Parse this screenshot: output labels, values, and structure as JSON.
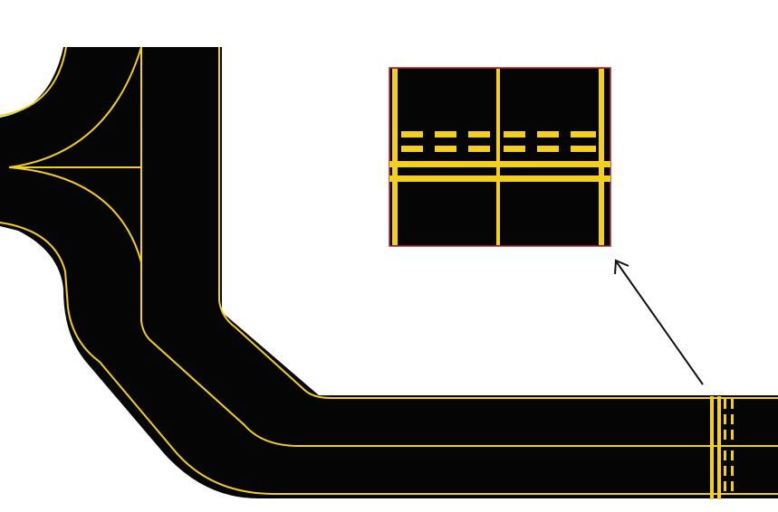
{
  "colors": {
    "background": "#ffffff",
    "pavement": "#050505",
    "marking": "#f4cf1c",
    "inset_border": "#b3262b",
    "arrow": "#111111"
  },
  "diagram": {
    "inset_markings": [
      "solid-edge-lines",
      "taxiway-centerline",
      "dashed-hold-lines",
      "solid-hold-lines"
    ],
    "callout": "arrow-from-hold-marking-to-inset"
  }
}
